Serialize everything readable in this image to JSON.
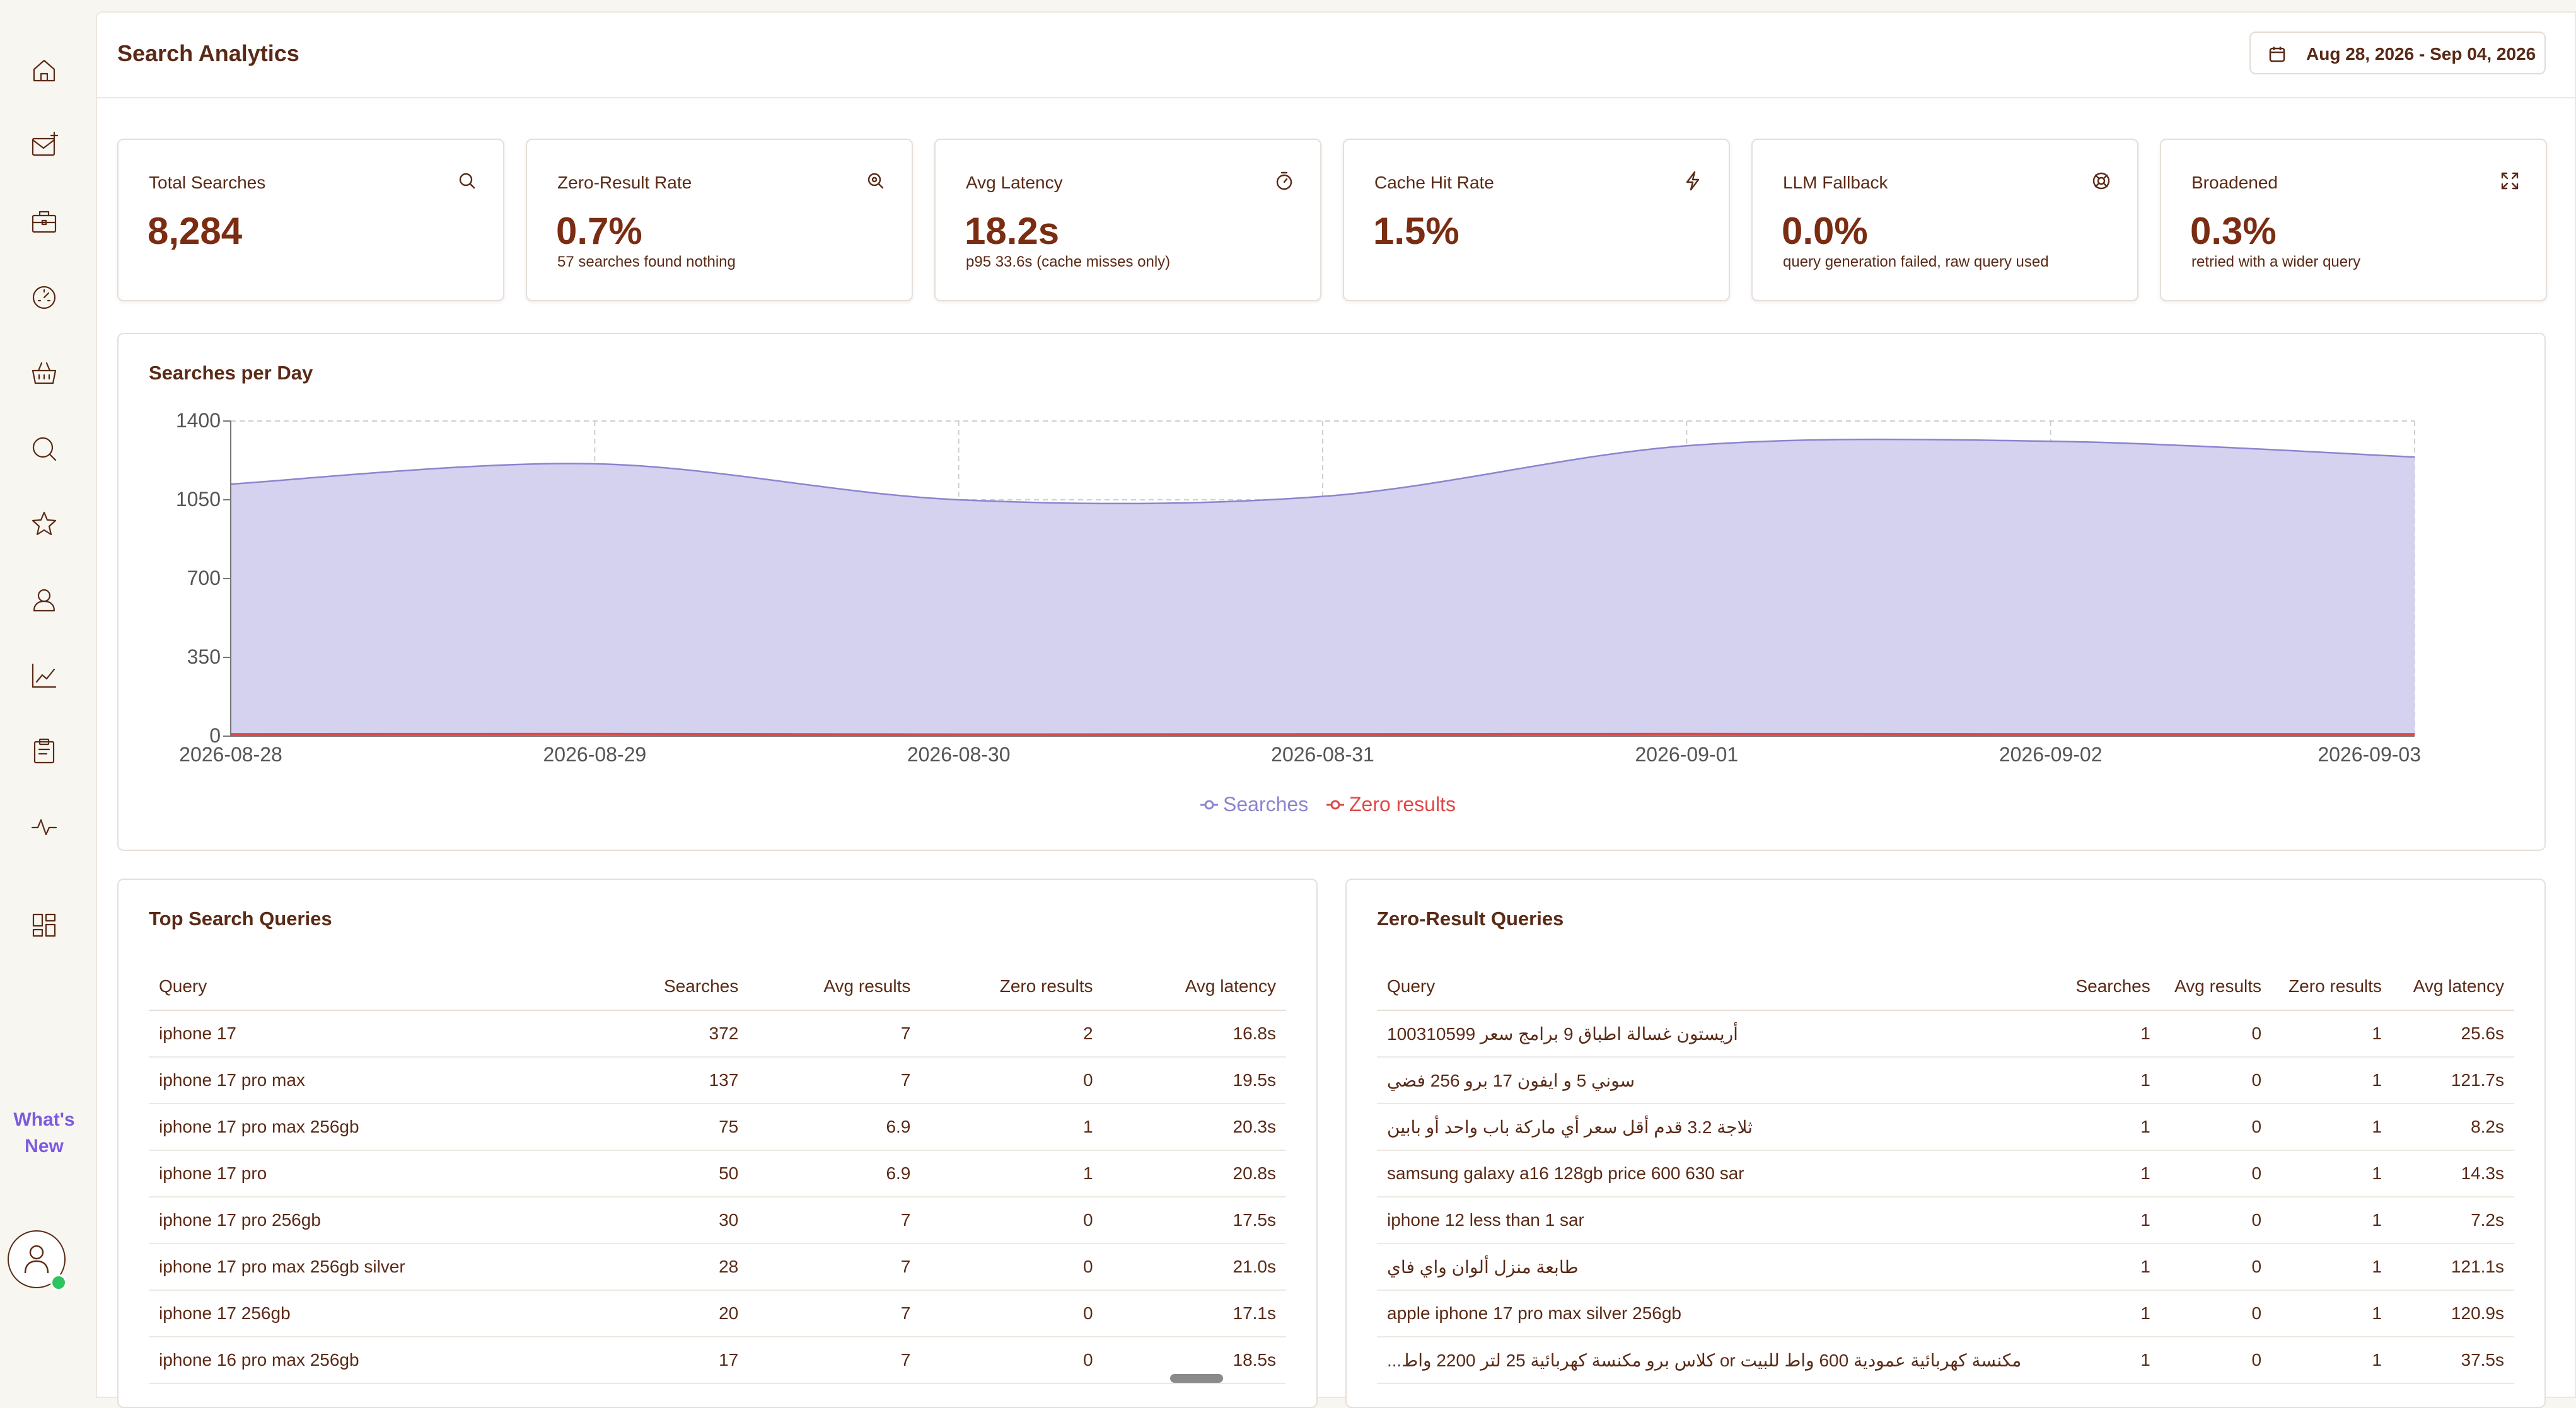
{
  "sidebar": {
    "icons": [
      "home-icon",
      "mail-icon",
      "briefcase-icon",
      "speedometer-icon",
      "basket-icon",
      "search-icon",
      "star-icon",
      "person-icon",
      "trend-chart-icon",
      "clipboard-icon",
      "activity-icon",
      "dashboard-icon"
    ],
    "whats_new_line1": "What's",
    "whats_new_line2": "New"
  },
  "header": {
    "title": "Search Analytics",
    "date_range": "Aug 28, 2026 - Sep 04, 2026"
  },
  "kpis": [
    {
      "label": "Total Searches",
      "value": "8,284",
      "sub": "",
      "icon": "search-icon"
    },
    {
      "label": "Zero-Result Rate",
      "value": "0.7%",
      "sub": "57 searches found nothing",
      "icon": "zoom-search-icon"
    },
    {
      "label": "Avg Latency",
      "value": "18.2s",
      "sub": "p95 33.6s (cache misses only)",
      "icon": "stopwatch-icon"
    },
    {
      "label": "Cache Hit Rate",
      "value": "1.5%",
      "sub": "",
      "icon": "lightning-icon"
    },
    {
      "label": "LLM Fallback",
      "value": "0.0%",
      "sub": "query generation failed, raw query used",
      "icon": "lifebuoy-icon"
    },
    {
      "label": "Broadened",
      "value": "0.3%",
      "sub": "retried with a wider query",
      "icon": "expand-icon"
    }
  ],
  "chart_title": "Searches per Day",
  "chart_data": {
    "type": "area",
    "title": "Searches per Day",
    "x": [
      "2026-08-28",
      "2026-08-29",
      "2026-08-30",
      "2026-08-31",
      "2026-09-01",
      "2026-09-02",
      "2026-09-03"
    ],
    "series": [
      {
        "name": "Searches",
        "values": [
          1120,
          1210,
          1050,
          1065,
          1290,
          1310,
          1240
        ],
        "color": "#8b84d0",
        "fill": "#d4d2ef"
      },
      {
        "name": "Zero results",
        "values": [
          8,
          9,
          7,
          8,
          9,
          8,
          8
        ],
        "color": "#e04848"
      }
    ],
    "yticks": [
      0,
      350,
      700,
      1050,
      1400
    ],
    "ylim": [
      0,
      1400
    ],
    "grid": true,
    "legend": "bottom-center"
  },
  "top_queries": {
    "title": "Top Search Queries",
    "columns": [
      "Query",
      "Searches",
      "Avg results",
      "Zero results",
      "Avg latency"
    ],
    "rows": [
      [
        "iphone 17",
        "372",
        "7",
        "2",
        "16.8s"
      ],
      [
        "iphone 17 pro max",
        "137",
        "7",
        "0",
        "19.5s"
      ],
      [
        "iphone 17 pro max 256gb",
        "75",
        "6.9",
        "1",
        "20.3s"
      ],
      [
        "iphone 17 pro",
        "50",
        "6.9",
        "1",
        "20.8s"
      ],
      [
        "iphone 17 pro 256gb",
        "30",
        "7",
        "0",
        "17.5s"
      ],
      [
        "iphone 17 pro max 256gb silver",
        "28",
        "7",
        "0",
        "21.0s"
      ],
      [
        "iphone 17 256gb",
        "20",
        "7",
        "0",
        "17.1s"
      ],
      [
        "iphone 16 pro max 256gb",
        "17",
        "7",
        "0",
        "18.5s"
      ]
    ]
  },
  "zero_queries": {
    "title": "Zero-Result Queries",
    "columns": [
      "Query",
      "Searches",
      "Avg results",
      "Zero results",
      "Avg latency"
    ],
    "rows": [
      [
        "أريستون غسالة اطباق 9 برامج سعر 100310599",
        "1",
        "0",
        "1",
        "25.6s"
      ],
      [
        "سوني 5 و ايفون 17 برو 256 فضي",
        "1",
        "0",
        "1",
        "121.7s"
      ],
      [
        "ثلاجة 3.2 قدم أقل سعر أي ماركة باب واحد أو بابين",
        "1",
        "0",
        "1",
        "8.2s"
      ],
      [
        "samsung galaxy a16 128gb price 600 630 sar",
        "1",
        "0",
        "1",
        "14.3s"
      ],
      [
        "iphone 12 less than 1 sar",
        "1",
        "0",
        "1",
        "7.2s"
      ],
      [
        "طابعة منزل ألوان واي فاي",
        "1",
        "0",
        "1",
        "121.1s"
      ],
      [
        "apple iphone 17 pro max silver 256gb",
        "1",
        "0",
        "1",
        "120.9s"
      ],
      [
        "مكنسة كهربائية عمودية 600 واط للبيت or كلاس برو مكنسة كهربائية 25 لتر 2200 واط...",
        "1",
        "0",
        "1",
        "37.5s"
      ]
    ]
  }
}
